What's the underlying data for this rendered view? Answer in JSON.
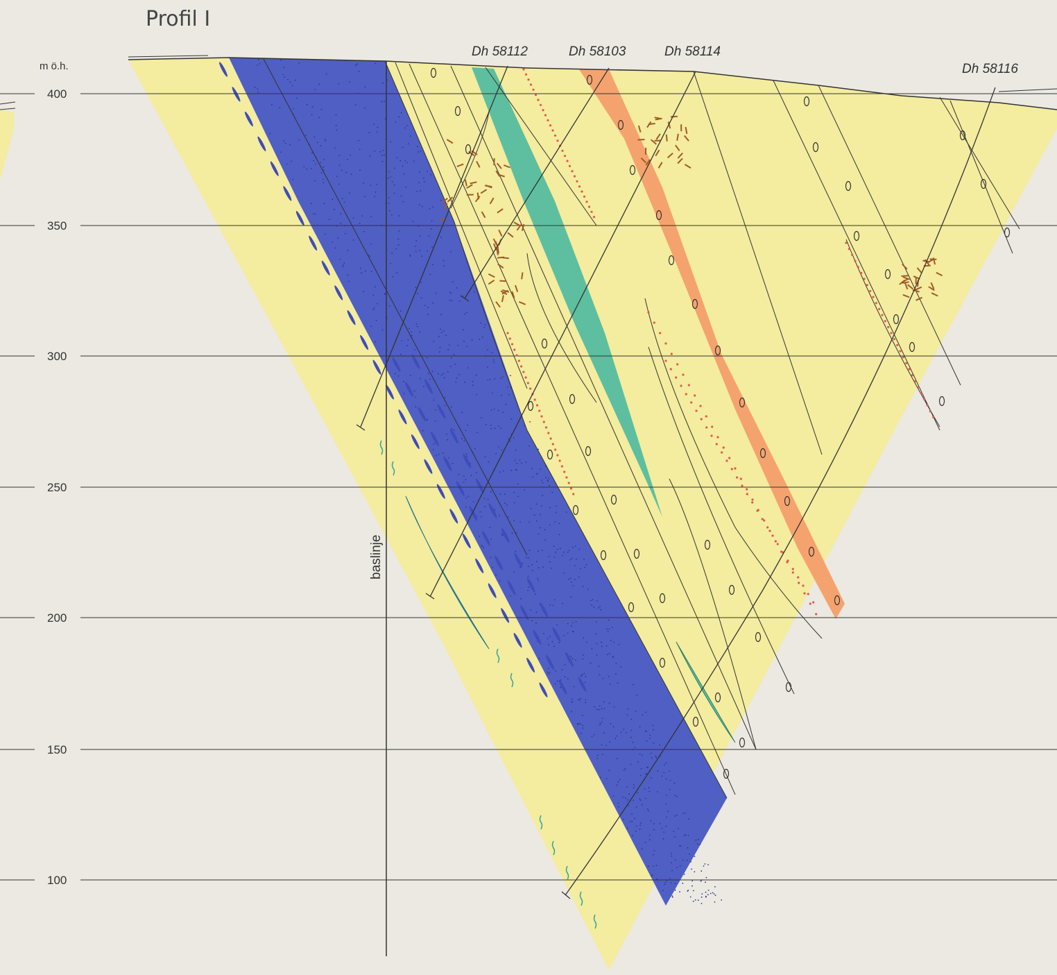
{
  "title": "Profil I",
  "axis_unit": "m ö.h.",
  "elevation_labels": [
    "400",
    "350",
    "300",
    "250",
    "200",
    "150",
    "100"
  ],
  "baseline_label": "baslinje",
  "drillholes": [
    {
      "id": "dh1",
      "label": "Dh 58112"
    },
    {
      "id": "dh2",
      "label": "Dh 58103"
    },
    {
      "id": "dh3",
      "label": "Dh 58114"
    },
    {
      "id": "dh4",
      "label": "Dh 58116"
    }
  ],
  "colors": {
    "background": "#ebe9e1",
    "host_rock": "#f4ec9f",
    "blue_band": "#4f5fc4",
    "green_band": "#5dbf9f",
    "orange_band": "#f5a36e",
    "cyan_lens": "#2aa6c9",
    "line": "#333333",
    "brown_marks": "#a15a28",
    "red_dots": "#e2584b"
  }
}
